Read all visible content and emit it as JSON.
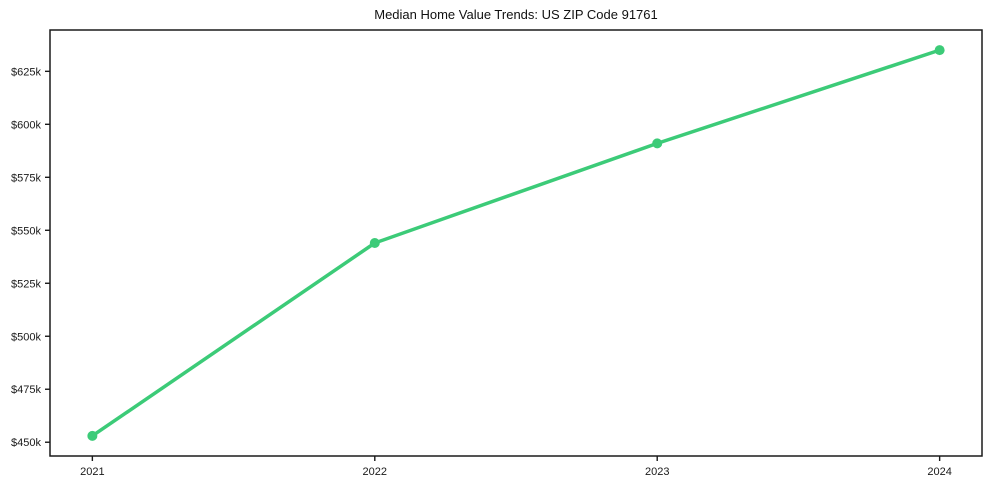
{
  "page": {
    "background_color": "#ffffff"
  },
  "chart_data": {
    "type": "line",
    "title": "Median Home Value Trends: US ZIP Code 91761",
    "xlabel": "",
    "ylabel": "",
    "x": [
      2021,
      2022,
      2023,
      2024
    ],
    "series": [
      {
        "name": "Median Home Value",
        "values": [
          453000,
          544000,
          591000,
          635000
        ]
      }
    ],
    "xtick_labels": [
      "2021",
      "2022",
      "2023",
      "2024"
    ],
    "yticks": [
      450000,
      475000,
      500000,
      525000,
      550000,
      575000,
      600000,
      625000
    ],
    "ytick_labels": [
      "$450k",
      "$475k",
      "$500k",
      "$525k",
      "$550k",
      "$575k",
      "$600k",
      "$625k"
    ],
    "xlim": [
      2020.85,
      2024.15
    ],
    "ylim": [
      443500,
      644500
    ],
    "grid": false,
    "legend_position": "none",
    "line_color": "#3ccb78",
    "marker": "circle",
    "axis_color": "#1a1a1a",
    "plot_background": "#ffffff"
  }
}
